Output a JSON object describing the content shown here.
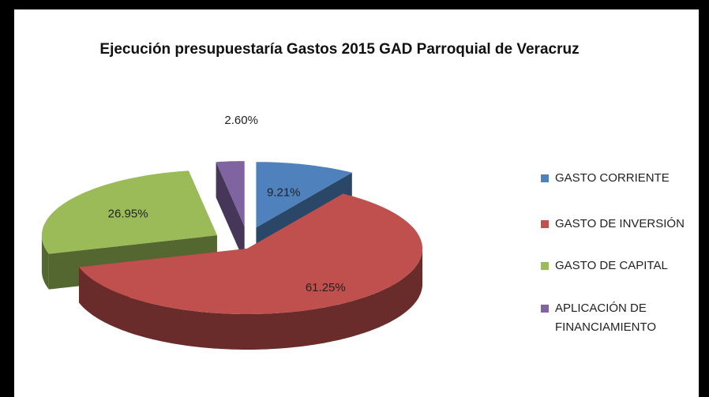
{
  "chart_data": {
    "type": "pie",
    "title": "Ejecución presupuestaría Gastos 2015 GAD Parroquial de Veracruz",
    "categories": [
      "GASTO CORRIENTE",
      "GASTO DE INVERSIÓN",
      "GASTO DE CAPITAL",
      "APLICACIÓN DE FINANCIAMIENTO"
    ],
    "values": [
      9.21,
      61.25,
      26.95,
      2.6
    ],
    "value_labels": [
      "9.21%",
      "61.25%",
      "26.95%",
      "2.60%"
    ],
    "colors": [
      "#4f81bd",
      "#c0504d",
      "#9bbb59",
      "#8064a2"
    ],
    "legend": "right"
  }
}
